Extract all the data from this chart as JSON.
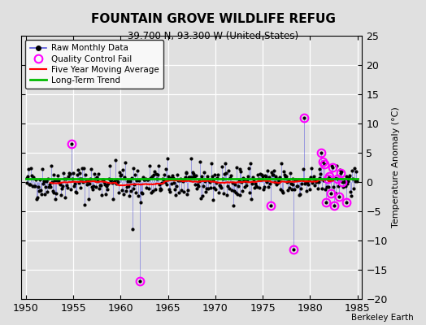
{
  "title": "FOUNTAIN GROVE WILDLIFE REFUG",
  "subtitle": "39.700 N, 93.300 W (United States)",
  "ylabel": "Temperature Anomaly (°C)",
  "credit": "Berkeley Earth",
  "xlim": [
    1949.5,
    1985.5
  ],
  "ylim": [
    -20,
    25
  ],
  "yticks": [
    -20,
    -15,
    -10,
    -5,
    0,
    5,
    10,
    15,
    20,
    25
  ],
  "xticks": [
    1950,
    1955,
    1960,
    1965,
    1970,
    1975,
    1980,
    1985
  ],
  "bg_color": "#e0e0e0",
  "grid_color": "#ffffff",
  "raw_line_color": "#5555dd",
  "raw_dot_color": "#000000",
  "qc_color": "#ff00ff",
  "ma_color": "#ff0000",
  "trend_color": "#00bb00",
  "legend_labels": [
    "Raw Monthly Data",
    "Quality Control Fail",
    "Five Year Moving Average",
    "Long-Term Trend"
  ],
  "seed": 42
}
